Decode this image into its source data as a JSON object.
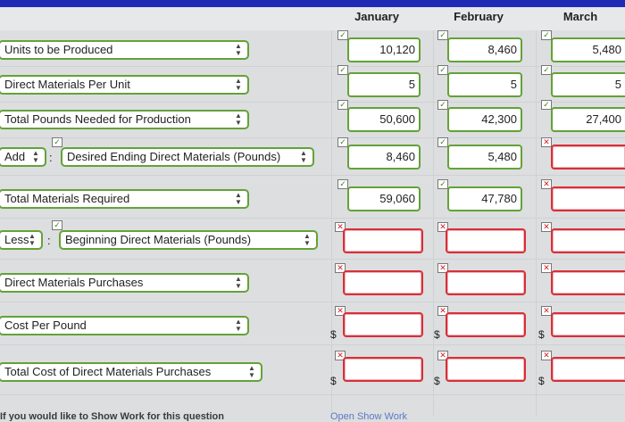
{
  "columns": [
    "January",
    "February",
    "March"
  ],
  "rows": [
    {
      "label": "Units to be Produced",
      "values": [
        "10,120",
        "8,460",
        "5,480"
      ],
      "status": [
        "ok",
        "ok",
        "ok"
      ]
    },
    {
      "label": "Direct Materials Per Unit",
      "values": [
        "5",
        "5",
        "5"
      ],
      "status": [
        "ok",
        "ok",
        "ok"
      ]
    },
    {
      "label": "Total Pounds Needed for Production",
      "values": [
        "50,600",
        "42,300",
        "27,400"
      ],
      "status": [
        "ok",
        "ok",
        "ok"
      ]
    },
    {
      "prefix": "Add",
      "label": "Desired Ending Direct Materials (Pounds)",
      "values": [
        "8,460",
        "5,480",
        ""
      ],
      "status": [
        "ok",
        "ok",
        "bad"
      ]
    },
    {
      "label": "Total Materials Required",
      "values": [
        "59,060",
        "47,780",
        ""
      ],
      "status": [
        "ok",
        "ok",
        "bad"
      ]
    },
    {
      "prefix": "Less",
      "label": "Beginning Direct Materials (Pounds)",
      "values": [
        "",
        "",
        ""
      ],
      "status": [
        "bad",
        "bad",
        "bad"
      ]
    },
    {
      "label": "Direct Materials Purchases",
      "values": [
        "",
        "",
        ""
      ],
      "status": [
        "bad",
        "bad",
        "bad"
      ]
    },
    {
      "label": "Cost Per Pound",
      "currency": "$",
      "values": [
        "",
        "",
        ""
      ],
      "status": [
        "bad",
        "bad",
        "bad"
      ]
    },
    {
      "label": "Total Cost of Direct Materials Purchases",
      "currency": "$",
      "values": [
        "",
        "",
        ""
      ],
      "status": [
        "bad",
        "bad",
        "bad"
      ]
    }
  ],
  "footer": {
    "hint": "If you would like to Show Work for this question",
    "link": "Open Show Work"
  },
  "colors": {
    "accent": "#63a238",
    "error": "#d7303a",
    "topbar": "#1f2bb5"
  }
}
